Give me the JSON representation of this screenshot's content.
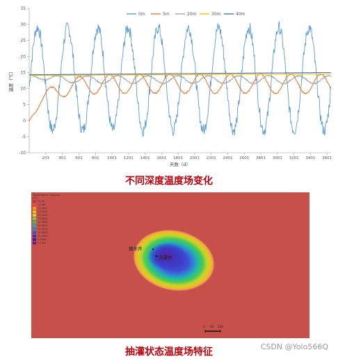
{
  "chart_data": [
    {
      "type": "line",
      "xlabel": "天数（d）",
      "ylabel": "温度（℃）",
      "xlim": [
        0,
        3650
      ],
      "ylim": [
        -10,
        35
      ],
      "y_ticks": [
        -10,
        -5,
        0,
        5,
        10,
        15,
        20,
        25,
        30,
        35
      ],
      "x_ticks": [
        201,
        401,
        601,
        801,
        1001,
        1201,
        1401,
        1601,
        1801,
        2001,
        2201,
        2401,
        2601,
        2801,
        3001,
        3201,
        3401,
        3601
      ],
      "legend_position": "top-right",
      "grid": false,
      "series": [
        {
          "name": "0m",
          "color": "#5b9bd5",
          "kind": "annual",
          "mean": 13,
          "amplitude": 16,
          "period": 365,
          "peak_day": 100,
          "noise": 2
        },
        {
          "name": "5m",
          "color": "#ed7d31",
          "kind": "damped",
          "start": 0,
          "mean": 11.5,
          "amplitude": 3,
          "period": 365,
          "phase_lag_days": 150
        },
        {
          "name": "20m",
          "color": "#a5a5a5",
          "kind": "damped",
          "start": 14.2,
          "mean": 12.8,
          "amplitude": 1.2,
          "period": 365,
          "phase_lag_days": 250
        },
        {
          "name": "30m",
          "color": "#ffc000",
          "kind": "flat",
          "start": 14.1,
          "end": 14.6
        },
        {
          "name": "40m",
          "color": "#4472c4",
          "kind": "flat",
          "start": 14.3,
          "end": 15.0
        }
      ]
    }
  ],
  "captions": {
    "top": "不同深度温度场变化",
    "bottom": "抽灌状态温度场特征"
  },
  "field": {
    "legend_title": "Temperature Contours",
    "legend_unit": "(℃)",
    "legend_values": [
      "15.50",
      "14.980",
      "14.4400",
      "13.9200",
      "13.4000",
      "12.8800",
      "12.3600",
      "11.8400",
      "11.3200",
      "10.8000",
      "10.2800",
      "9.7600",
      "9.2400"
    ],
    "legend_colors": [
      "#c0392b",
      "#e74c3c",
      "#f39c12",
      "#f1c40f",
      "#c6d636",
      "#7ec845",
      "#3bbf59",
      "#19b5a8",
      "#2e86c1",
      "#3b4fd1",
      "#3c2fb4",
      "#4b1c9a",
      "#6a1b9a"
    ],
    "background_color": "#c8504a",
    "pump_well_label": "抽水井",
    "inject_well_label": "回灌井",
    "scale_labels": [
      "0",
      "50",
      "100"
    ]
  },
  "watermark": "CSDN @Yolo566Q"
}
